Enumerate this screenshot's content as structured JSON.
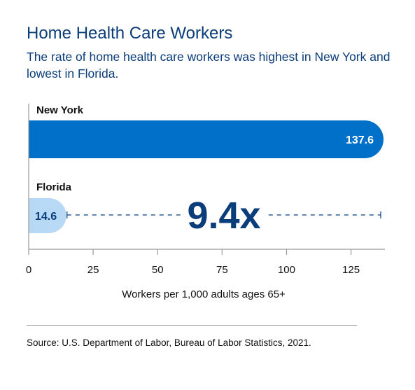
{
  "header": {
    "title": "Home Health Care Workers",
    "subtitle": "The rate of home health care workers was highest in New York and lowest in Florida."
  },
  "chart_data": {
    "type": "bar",
    "orientation": "horizontal",
    "categories": [
      "New York",
      "Florida"
    ],
    "values": [
      137.6,
      14.6
    ],
    "value_labels": [
      "137.6",
      "14.6"
    ],
    "xlabel": "Workers per 1,000 adults ages 65+",
    "ylabel": "",
    "xlim": [
      0,
      137.6
    ],
    "xticks": [
      0,
      25,
      50,
      75,
      100,
      125
    ],
    "annotation": "9.4x",
    "colors": {
      "bar_high": "#0070c9",
      "bar_low": "#b7d9f5",
      "text_dark": "#0a3d7a",
      "axis": "#9a9a9a"
    },
    "grid": false,
    "legend": "none"
  },
  "footer": {
    "source": "Source: U.S. Department of Labor, Bureau of Labor Statistics, 2021."
  }
}
